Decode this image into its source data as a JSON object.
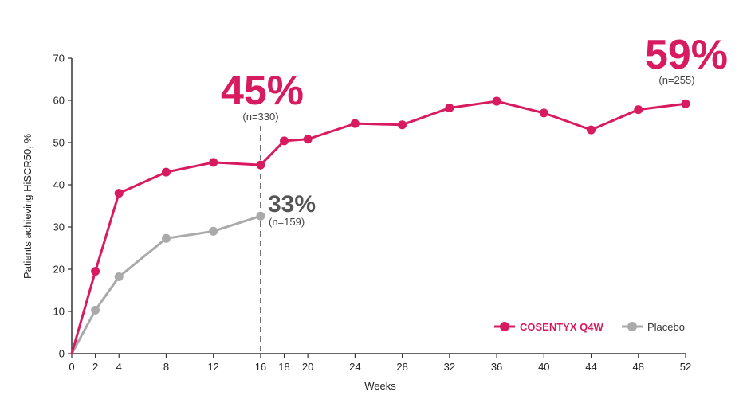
{
  "chart_data": {
    "type": "line",
    "title": "",
    "xlabel": "Weeks",
    "ylabel": "Patients achieving HiSCR50, %",
    "xlim": [
      0,
      52
    ],
    "ylim": [
      0,
      70
    ],
    "x_ticks": [
      0,
      2,
      4,
      8,
      12,
      16,
      18,
      20,
      24,
      28,
      32,
      36,
      40,
      44,
      48,
      52
    ],
    "y_ticks": [
      0,
      10,
      20,
      30,
      40,
      50,
      60,
      70
    ],
    "grid": false,
    "legend_position": "bottom-right",
    "series": [
      {
        "name": "COSENTYX Q4W",
        "color": "#d81b60",
        "x": [
          0,
          2,
          4,
          8,
          12,
          16,
          18,
          20,
          24,
          28,
          32,
          36,
          40,
          44,
          48,
          52
        ],
        "values": [
          0,
          19.5,
          38,
          43,
          45.3,
          44.7,
          50.4,
          50.8,
          54.5,
          54.2,
          58.2,
          59.8,
          57,
          53,
          57.8,
          59.2
        ]
      },
      {
        "name": "Placebo",
        "color": "#aaaaaa",
        "x": [
          0,
          2,
          4,
          8,
          12,
          16
        ],
        "values": [
          0,
          10.3,
          18.2,
          27.3,
          29,
          32.6
        ]
      }
    ],
    "reference_line": {
      "x": 16,
      "style": "dashed"
    },
    "annotations": [
      {
        "text": "45%",
        "sub": "(n=330)",
        "series": "COSENTYX Q4W",
        "x": 16,
        "color": "#d81b60"
      },
      {
        "text": "33%",
        "sub": "(n=159)",
        "series": "Placebo",
        "x": 16,
        "color": "#555555"
      },
      {
        "text": "59%",
        "sub": "(n=255)",
        "series": "COSENTYX Q4W",
        "x": 52,
        "color": "#d81b60"
      }
    ]
  }
}
